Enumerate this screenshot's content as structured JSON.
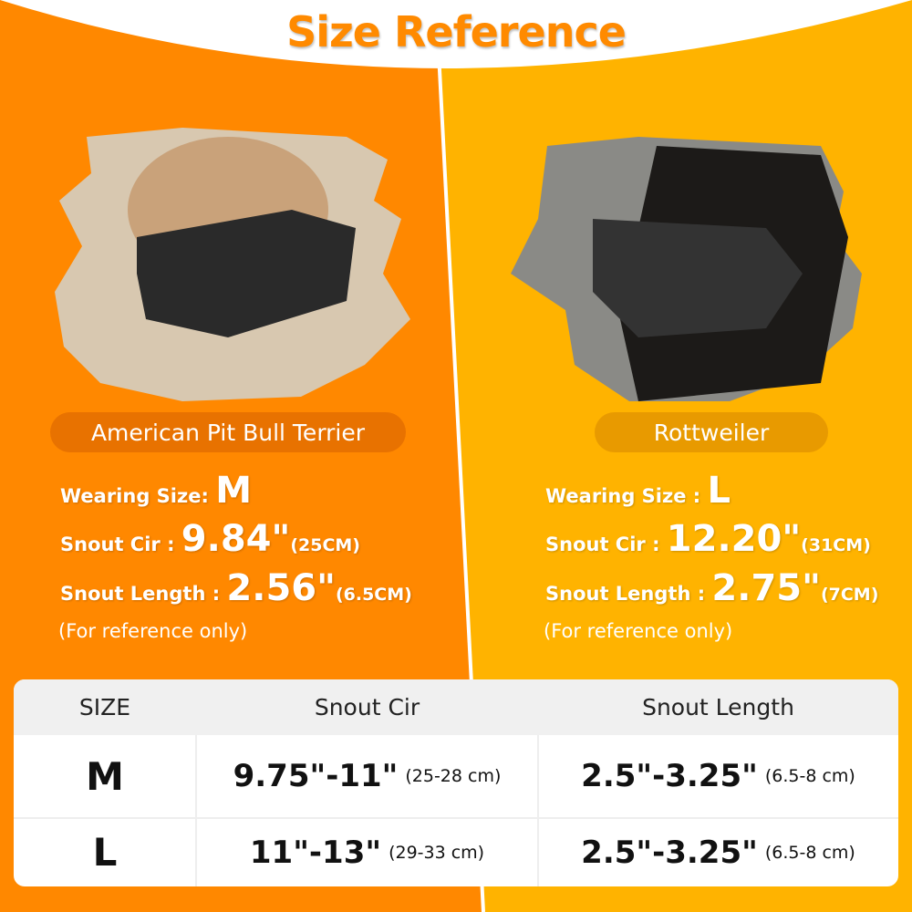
{
  "title": "Size Reference",
  "colors": {
    "left_bg": "#ff8800",
    "right_bg": "#ffb300",
    "title": "#ff8a00"
  },
  "dogs": [
    {
      "breed": "American Pit Bull Terrier",
      "wearing_label": "Wearing Size:",
      "wearing_size": "M",
      "snout_cir_label": "Snout Cir :",
      "snout_cir": "9.84\"",
      "snout_cir_cm": "(25CM)",
      "snout_length_label": "Snout Length :",
      "snout_length": "2.56\"",
      "snout_length_cm": "(6.5CM)",
      "note": "(For reference only)"
    },
    {
      "breed": "Rottweiler",
      "wearing_label": "Wearing Size :",
      "wearing_size": "L",
      "snout_cir_label": "Snout Cir :",
      "snout_cir": "12.20\"",
      "snout_cir_cm": "(31CM)",
      "snout_length_label": "Snout Length :",
      "snout_length": "2.75\"",
      "snout_length_cm": "(7CM)",
      "note": "(For reference only)"
    }
  ],
  "table": {
    "headers": [
      "SIZE",
      "Snout Cir",
      "Snout Length"
    ],
    "rows": [
      {
        "size": "M",
        "cir": "9.75\"-11\"",
        "cir_cm": "(25-28 cm)",
        "len": "2.5\"-3.25\"",
        "len_cm": "(6.5-8 cm)"
      },
      {
        "size": "L",
        "cir": "11\"-13\"",
        "cir_cm": "(29-33 cm)",
        "len": "2.5\"-3.25\"",
        "len_cm": "(6.5-8 cm)"
      }
    ]
  }
}
